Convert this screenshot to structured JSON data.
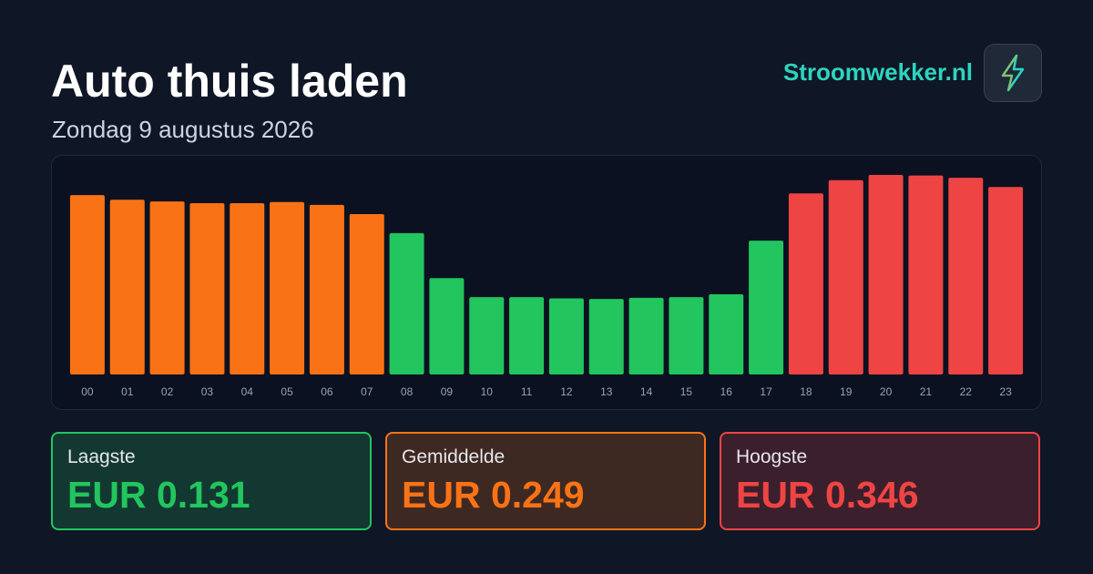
{
  "header": {
    "title": "Auto thuis laden",
    "subtitle": "Zondag 9 augustus 2026",
    "brand": "Stroomwekker.nl"
  },
  "chart_data": {
    "type": "bar",
    "categories": [
      "00",
      "01",
      "02",
      "03",
      "04",
      "05",
      "06",
      "07",
      "08",
      "09",
      "10",
      "11",
      "12",
      "13",
      "14",
      "15",
      "16",
      "17",
      "18",
      "19",
      "20",
      "21",
      "22",
      "23"
    ],
    "values": [
      0.311,
      0.303,
      0.3,
      0.297,
      0.297,
      0.299,
      0.294,
      0.278,
      0.245,
      0.167,
      0.134,
      0.134,
      0.132,
      0.131,
      0.133,
      0.134,
      0.139,
      0.232,
      0.314,
      0.337,
      0.346,
      0.345,
      0.341,
      0.325
    ],
    "colors": [
      "#f97316",
      "#f97316",
      "#f97316",
      "#f97316",
      "#f97316",
      "#f97316",
      "#f97316",
      "#f97316",
      "#22c55e",
      "#22c55e",
      "#22c55e",
      "#22c55e",
      "#22c55e",
      "#22c55e",
      "#22c55e",
      "#22c55e",
      "#22c55e",
      "#22c55e",
      "#ef4444",
      "#ef4444",
      "#ef4444",
      "#ef4444",
      "#ef4444",
      "#ef4444"
    ]
  },
  "stats": [
    {
      "label": "Laagste",
      "value": "EUR 0.131",
      "color": "#22c55e"
    },
    {
      "label": "Gemiddelde",
      "value": "EUR 0.249",
      "color": "#f97316"
    },
    {
      "label": "Hoogste",
      "value": "EUR 0.346",
      "color": "#ef4444"
    }
  ]
}
